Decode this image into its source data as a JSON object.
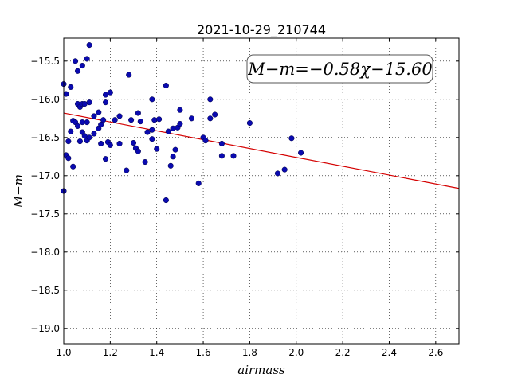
{
  "chart_data": {
    "type": "scatter",
    "title": "2021-10-29_210744",
    "xlabel": "airmass",
    "ylabel": "M−m",
    "xlim": [
      1.0,
      2.7
    ],
    "ylim": [
      -19.2,
      -15.2
    ],
    "y_inverted": true,
    "grid": true,
    "grid_style": "dotted",
    "x_ticks": [
      1.0,
      1.2,
      1.4,
      1.6,
      1.8,
      2.0,
      2.2,
      2.4,
      2.6
    ],
    "x_tick_labels": [
      "1.0",
      "1.2",
      "1.4",
      "1.6",
      "1.8",
      "2.0",
      "2.2",
      "2.4",
      "2.6"
    ],
    "y_ticks": [
      -15.5,
      -16.0,
      -16.5,
      -17.0,
      -17.5,
      -18.0,
      -18.5,
      -19.0
    ],
    "y_tick_labels": [
      "−15.5",
      "−16.0",
      "−16.5",
      "−17.0",
      "−17.5",
      "−18.0",
      "−18.5",
      "−19.0"
    ],
    "annotation": "M−m=−0.58χ−15.60",
    "annotation_position": "top-right",
    "fit": {
      "slope": -0.58,
      "intercept": -15.6,
      "color": "#d40000"
    },
    "marker_color": "#0a0ab0",
    "points": [
      [
        1.0,
        -15.8
      ],
      [
        1.0,
        -17.2
      ],
      [
        1.01,
        -15.93
      ],
      [
        1.01,
        -16.73
      ],
      [
        1.02,
        -16.77
      ],
      [
        1.02,
        -16.55
      ],
      [
        1.03,
        -15.84
      ],
      [
        1.03,
        -16.42
      ],
      [
        1.04,
        -16.28
      ],
      [
        1.04,
        -16.88
      ],
      [
        1.05,
        -15.5
      ],
      [
        1.05,
        -16.3
      ],
      [
        1.06,
        -15.63
      ],
      [
        1.06,
        -16.06
      ],
      [
        1.06,
        -16.35
      ],
      [
        1.07,
        -16.1
      ],
      [
        1.07,
        -16.55
      ],
      [
        1.08,
        -15.56
      ],
      [
        1.08,
        -16.06
      ],
      [
        1.08,
        -16.3
      ],
      [
        1.08,
        -16.43
      ],
      [
        1.09,
        -16.06
      ],
      [
        1.09,
        -16.48
      ],
      [
        1.1,
        -16.54
      ],
      [
        1.1,
        -15.47
      ],
      [
        1.1,
        -16.3
      ],
      [
        1.11,
        -15.29
      ],
      [
        1.11,
        -16.04
      ],
      [
        1.11,
        -16.5
      ],
      [
        1.13,
        -16.45
      ],
      [
        1.13,
        -16.22
      ],
      [
        1.15,
        -16.17
      ],
      [
        1.15,
        -16.38
      ],
      [
        1.16,
        -16.33
      ],
      [
        1.16,
        -16.58
      ],
      [
        1.17,
        -16.27
      ],
      [
        1.18,
        -15.94
      ],
      [
        1.18,
        -16.04
      ],
      [
        1.18,
        -16.78
      ],
      [
        1.19,
        -16.56
      ],
      [
        1.2,
        -15.91
      ],
      [
        1.2,
        -16.6
      ],
      [
        1.22,
        -16.27
      ],
      [
        1.24,
        -16.22
      ],
      [
        1.24,
        -16.58
      ],
      [
        1.27,
        -16.93
      ],
      [
        1.28,
        -15.68
      ],
      [
        1.29,
        -16.27
      ],
      [
        1.3,
        -16.57
      ],
      [
        1.31,
        -16.64
      ],
      [
        1.32,
        -16.18
      ],
      [
        1.32,
        -16.68
      ],
      [
        1.33,
        -16.29
      ],
      [
        1.35,
        -16.82
      ],
      [
        1.36,
        -16.43
      ],
      [
        1.38,
        -16.0
      ],
      [
        1.38,
        -16.4
      ],
      [
        1.38,
        -16.52
      ],
      [
        1.39,
        -16.27
      ],
      [
        1.4,
        -16.65
      ],
      [
        1.41,
        -16.26
      ],
      [
        1.44,
        -15.82
      ],
      [
        1.44,
        -17.32
      ],
      [
        1.45,
        -16.42
      ],
      [
        1.46,
        -16.87
      ],
      [
        1.47,
        -16.38
      ],
      [
        1.47,
        -16.75
      ],
      [
        1.48,
        -16.66
      ],
      [
        1.49,
        -16.37
      ],
      [
        1.5,
        -16.32
      ],
      [
        1.5,
        -16.14
      ],
      [
        1.55,
        -16.25
      ],
      [
        1.58,
        -17.1
      ],
      [
        1.6,
        -16.5
      ],
      [
        1.61,
        -16.54
      ],
      [
        1.63,
        -16.0
      ],
      [
        1.63,
        -16.25
      ],
      [
        1.65,
        -16.2
      ],
      [
        1.68,
        -16.58
      ],
      [
        1.68,
        -16.74
      ],
      [
        1.73,
        -16.74
      ],
      [
        1.8,
        -16.31
      ],
      [
        1.92,
        -16.97
      ],
      [
        1.95,
        -16.92
      ],
      [
        1.98,
        -16.51
      ],
      [
        2.02,
        -16.7
      ]
    ]
  }
}
